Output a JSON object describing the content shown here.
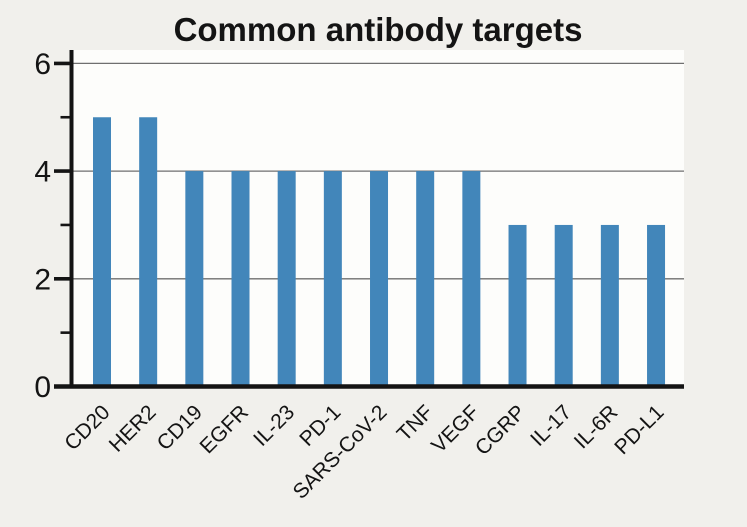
{
  "page": {
    "background": "#f1f0ec",
    "plot_background": "#fdfdfb"
  },
  "chart_data": {
    "type": "bar",
    "title": "Common antibody targets",
    "categories": [
      "CD20",
      "HER2",
      "CD19",
      "EGFR",
      "IL-23",
      "PD-1",
      "SARS-CoV-2",
      "TNF",
      "VEGF",
      "CGRP",
      "IL-17",
      "IL-6R",
      "PD-L1"
    ],
    "values": [
      5,
      5,
      4,
      4,
      4,
      4,
      4,
      4,
      4,
      3,
      3,
      3,
      3
    ],
    "xlabel": "",
    "ylabel": "",
    "ylim": [
      0,
      6.25
    ],
    "yticks_major": [
      0,
      2,
      4,
      6
    ],
    "yticks_minor": [
      1,
      3,
      5
    ],
    "gridlines_at": [
      2,
      4,
      6
    ],
    "grid": true,
    "legend": "none",
    "x_label_rotation_deg": 45,
    "colors": {
      "bar": "#4286ba",
      "grid_line": "#6f6f6f",
      "axis": "#141414",
      "text": "#141414"
    }
  }
}
